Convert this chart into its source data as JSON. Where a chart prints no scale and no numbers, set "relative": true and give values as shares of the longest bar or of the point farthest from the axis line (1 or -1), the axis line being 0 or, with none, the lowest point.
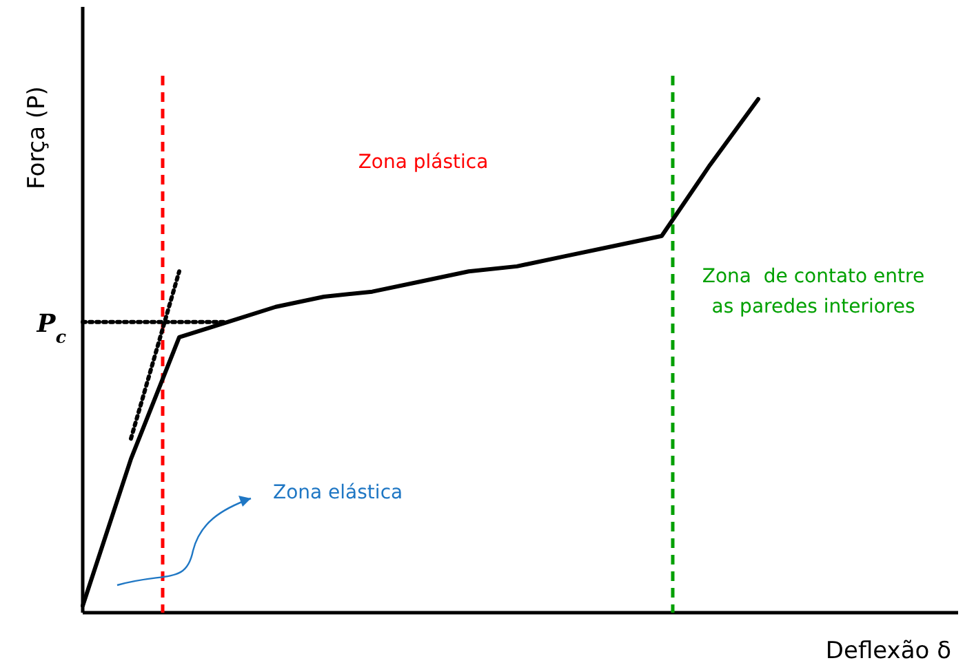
{
  "chart_data": {
    "type": "line",
    "relative": true,
    "xlabel": "Deflexão δ",
    "ylabel": "Força (P)",
    "categories": [
      null,
      null,
      null,
      null,
      null,
      null,
      null,
      null,
      null,
      null,
      null,
      null,
      null,
      null,
      null
    ],
    "series": [
      {
        "color": "#000000",
        "values": [
          0,
          0.29,
          0.53,
          0.56,
          0.59,
          0.61,
          0.62,
          0.64,
          0.66,
          0.67,
          0.69,
          0.71,
          0.73,
          0.87,
          1
        ]
      },
      {
        "color": "#000000",
        "line_style": "dotted",
        "values": [
          0.56,
          0.56,
          0.56,
          0.56,
          null,
          null,
          null,
          null,
          null,
          null,
          null,
          null,
          null,
          null,
          null
        ]
      },
      {
        "color": "#000000",
        "line_style": "dotted",
        "values": [
          null,
          0.33,
          0.66,
          null,
          null,
          null,
          null,
          null,
          null,
          null,
          null,
          null,
          null,
          null,
          null
        ]
      }
    ],
    "annotations": [
      "P$_{c}$",
      "Zona plástica",
      "Zona  de contato entre\nas paredes interiores",
      "Zona elástica"
    ]
  }
}
